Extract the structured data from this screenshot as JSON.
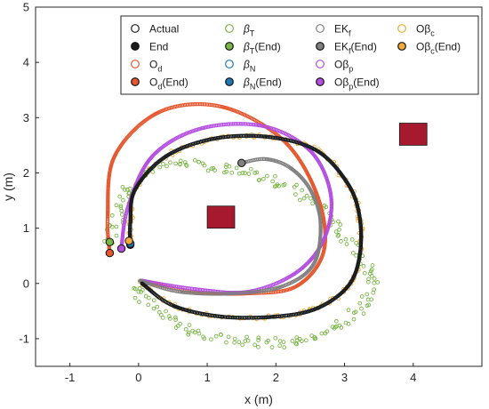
{
  "chart_data": {
    "type": "scatter",
    "xlabel": "x (m)",
    "ylabel": "y (m)",
    "xlim": [
      -1.5,
      5
    ],
    "ylim": [
      -1.5,
      5
    ],
    "xticks": [
      -1,
      0,
      1,
      2,
      3,
      4
    ],
    "yticks": [
      -1,
      0,
      1,
      2,
      3,
      4,
      5
    ],
    "grid": false,
    "legend_position": "top-right",
    "obstacles": [
      {
        "x": [
          1.0,
          1.4
        ],
        "y": [
          1.0,
          1.4
        ],
        "color": "#a6192e"
      },
      {
        "x": [
          3.8,
          4.2
        ],
        "y": [
          2.5,
          2.9
        ],
        "color": "#a6192e"
      }
    ],
    "series": [
      {
        "name": "Actual",
        "style": "curve",
        "color": "#1b1b1b",
        "x": [
          0.05,
          0.5,
          1.2,
          2.0,
          2.6,
          3.05,
          3.22,
          3.22,
          3.05,
          2.6,
          1.9,
          1.1,
          0.4,
          -0.05,
          -0.12,
          -0.12
        ],
        "y": [
          0.0,
          -0.4,
          -0.6,
          -0.6,
          -0.45,
          -0.05,
          0.5,
          1.2,
          1.8,
          2.4,
          2.65,
          2.62,
          2.3,
          1.7,
          1.1,
          0.7
        ]
      },
      {
        "name": "Od",
        "style": "curve",
        "color": "#e4572e",
        "x": [
          0.02,
          0.8,
          1.6,
          2.3,
          2.7,
          2.6,
          2.1,
          1.2,
          0.3,
          -0.35,
          -0.45,
          -0.42
        ],
        "y": [
          0.05,
          -0.15,
          -0.18,
          -0.05,
          0.6,
          1.6,
          2.6,
          3.2,
          3.1,
          2.3,
          1.2,
          0.55
        ]
      },
      {
        "name": "βT",
        "style": "noisy",
        "color": "#7ab648",
        "x": [
          -0.1,
          0.3,
          0.9,
          1.6,
          2.3,
          2.9,
          3.3,
          3.4,
          3.1,
          2.6,
          1.9,
          1.2,
          0.5,
          -0.1,
          -0.3,
          -0.42
        ],
        "y": [
          -0.05,
          -0.5,
          -0.9,
          -1.05,
          -1.05,
          -0.8,
          -0.3,
          0.1,
          0.7,
          1.4,
          1.9,
          2.1,
          2.15,
          1.8,
          1.2,
          0.75
        ]
      },
      {
        "name": "βN",
        "style": "curve",
        "color": "#1f78b4",
        "x": [
          0.05,
          0.5,
          1.2,
          2.0,
          2.6,
          3.05,
          3.22,
          3.22,
          3.05,
          2.6,
          1.9,
          1.1,
          0.4,
          -0.05,
          -0.12,
          -0.12
        ],
        "y": [
          0.0,
          -0.4,
          -0.6,
          -0.6,
          -0.45,
          -0.05,
          0.5,
          1.2,
          1.8,
          2.4,
          2.65,
          2.62,
          2.3,
          1.7,
          1.1,
          0.7
        ]
      },
      {
        "name": "EKf",
        "style": "curve",
        "color": "#7f7f7f",
        "x": [
          0.02,
          0.6,
          1.4,
          2.1,
          2.55,
          2.65,
          2.5,
          2.2,
          1.85,
          1.5
        ],
        "y": [
          0.05,
          -0.15,
          -0.18,
          -0.05,
          0.35,
          1.1,
          1.7,
          2.1,
          2.25,
          2.18
        ]
      },
      {
        "name": "Oβp",
        "style": "curve",
        "color": "#b44ee0",
        "x": [
          0.05,
          0.8,
          1.6,
          2.3,
          2.7,
          2.8,
          2.5,
          1.8,
          0.9,
          0.2,
          -0.15,
          -0.25
        ],
        "y": [
          0.05,
          -0.1,
          -0.15,
          0.2,
          0.8,
          1.6,
          2.4,
          2.85,
          2.8,
          2.3,
          1.4,
          0.65
        ]
      },
      {
        "name": "Oβc",
        "style": "noisy",
        "color": "#f2a93b",
        "x": [
          0.05,
          0.5,
          1.2,
          2.0,
          2.6,
          3.05,
          3.22,
          3.22,
          3.05,
          2.6,
          1.9,
          1.1,
          0.4,
          -0.05,
          -0.12,
          -0.13
        ],
        "y": [
          0.0,
          -0.4,
          -0.6,
          -0.6,
          -0.45,
          -0.05,
          0.5,
          1.2,
          1.8,
          2.4,
          2.65,
          2.62,
          2.3,
          1.7,
          1.1,
          0.75
        ]
      }
    ],
    "end_points": [
      {
        "name": "End",
        "x": -0.12,
        "y": 0.7,
        "color": "#1b1b1b"
      },
      {
        "name": "Od(End)",
        "x": -0.42,
        "y": 0.55,
        "color": "#e4572e"
      },
      {
        "name": "βT(End)",
        "x": -0.42,
        "y": 0.75,
        "color": "#7ab648"
      },
      {
        "name": "βN(End)",
        "x": -0.12,
        "y": 0.72,
        "color": "#1f78b4"
      },
      {
        "name": "EKf(End)",
        "x": 1.5,
        "y": 2.18,
        "color": "#7f7f7f"
      },
      {
        "name": "Oβp(End)",
        "x": -0.25,
        "y": 0.63,
        "color": "#b44ee0"
      },
      {
        "name": "Oβc(End)",
        "x": -0.14,
        "y": 0.77,
        "color": "#f2a93b"
      }
    ],
    "legend": [
      {
        "label": "Actual",
        "sub": "",
        "suffix": "",
        "base_italic": false,
        "color": "#1b1b1b",
        "filled": false
      },
      {
        "label": "β",
        "sub": "T",
        "suffix": "",
        "base_italic": true,
        "color": "#7ab648",
        "filled": false
      },
      {
        "label": "EK",
        "sub": "f",
        "suffix": "",
        "base_italic": false,
        "color": "#7f7f7f",
        "filled": false
      },
      {
        "label": "Oβ",
        "sub": "c",
        "suffix": "",
        "base_italic": false,
        "color": "#f2a93b",
        "filled": false
      },
      {
        "label": "End",
        "sub": "",
        "suffix": "",
        "base_italic": false,
        "color": "#1b1b1b",
        "filled": true
      },
      {
        "label": "β",
        "sub": "T",
        "suffix": "(End)",
        "base_italic": true,
        "color": "#7ab648",
        "filled": true
      },
      {
        "label": "EK",
        "sub": "f",
        "suffix": "(End)",
        "base_italic": false,
        "color": "#7f7f7f",
        "filled": true
      },
      {
        "label": "Oβ",
        "sub": "c",
        "suffix": "(End)",
        "base_italic": false,
        "color": "#f2a93b",
        "filled": true
      },
      {
        "label": "O",
        "sub": "d",
        "suffix": "",
        "base_italic": false,
        "color": "#e4572e",
        "filled": false
      },
      {
        "label": "β",
        "sub": "N",
        "suffix": "",
        "base_italic": true,
        "color": "#1f78b4",
        "filled": false
      },
      {
        "label": "Oβ",
        "sub": "p",
        "suffix": "",
        "base_italic": false,
        "color": "#b44ee0",
        "filled": false
      },
      {
        "label": "",
        "sub": "",
        "suffix": "",
        "base_italic": false,
        "color": "",
        "filled": false
      },
      {
        "label": "O",
        "sub": "d",
        "suffix": "(End)",
        "base_italic": false,
        "color": "#e4572e",
        "filled": true
      },
      {
        "label": "β",
        "sub": "N",
        "suffix": "(End)",
        "base_italic": true,
        "color": "#1f78b4",
        "filled": true
      },
      {
        "label": "Oβ",
        "sub": "p",
        "suffix": "(End)",
        "base_italic": false,
        "color": "#b44ee0",
        "filled": true
      },
      {
        "label": "",
        "sub": "",
        "suffix": "",
        "base_italic": false,
        "color": "",
        "filled": false
      }
    ]
  }
}
